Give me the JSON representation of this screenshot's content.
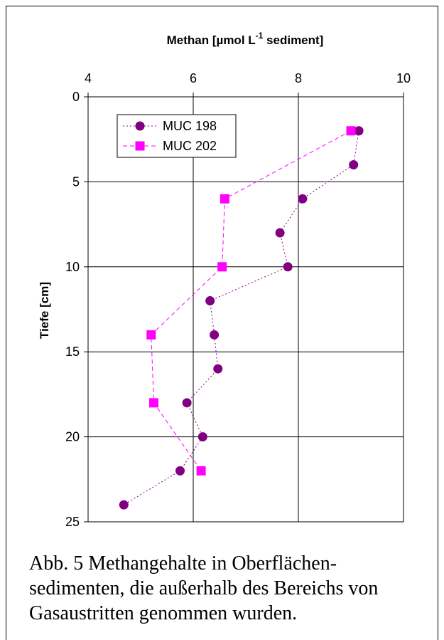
{
  "chart_data": {
    "type": "scatter",
    "title_main": "Methan [µmol L",
    "title_sup": "-1",
    "title_rest": " sediment]",
    "ylabel": "Tiefe [cm]",
    "xlim": [
      4,
      10
    ],
    "ylim": [
      0,
      25
    ],
    "y_inverted": true,
    "x_axis_position": "top",
    "x_ticks": [
      "4",
      "6",
      "8",
      "10"
    ],
    "y_ticks": [
      "0",
      "5",
      "10",
      "15",
      "20",
      "25"
    ],
    "grid": true,
    "legend_placement": "top-left",
    "series": [
      {
        "name": "MUC 198",
        "marker": "circle",
        "line_style": "dotted",
        "color": "#800080",
        "x": [
          9.15,
          9.05,
          8.08,
          7.65,
          7.8,
          6.32,
          6.4,
          6.47,
          5.88,
          6.18,
          5.75,
          4.68
        ],
        "y": [
          2,
          4,
          6,
          8,
          10,
          12,
          14,
          16,
          18,
          20,
          22,
          24
        ]
      },
      {
        "name": "MUC 202",
        "marker": "square",
        "line_style": "dashed",
        "color": "#ff00ff",
        "x": [
          9.0,
          6.6,
          6.55,
          5.2,
          5.25,
          6.15
        ],
        "y": [
          2,
          6,
          10,
          14,
          18,
          22
        ]
      }
    ]
  },
  "caption": {
    "lines": [
      "Abb. 5  Methangehalte in Oberflächen-",
      "sedimenten, die außerhalb des Bereichs von",
      "Gasaustritten genommen wurden."
    ]
  }
}
